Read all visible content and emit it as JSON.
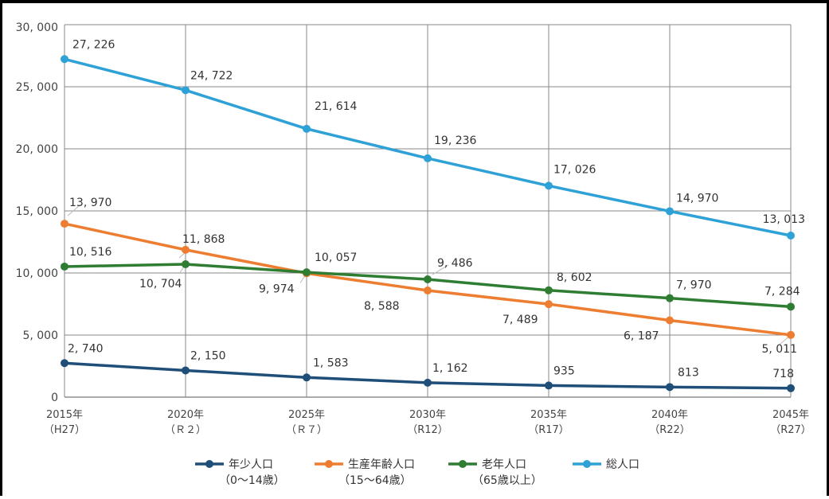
{
  "chart_data": {
    "type": "line",
    "title": "",
    "xlabel": "",
    "ylabel": "",
    "ylim": [
      0,
      30000
    ],
    "yticks": [
      "0",
      "5, 000",
      "10, 000",
      "15, 000",
      "20, 000",
      "25, 000",
      "30, 000"
    ],
    "grid": true,
    "legend_position": "bottom",
    "categories": [
      {
        "year": "2015年",
        "era": "（H27）"
      },
      {
        "year": "2020年",
        "era": "（Ｒ２）"
      },
      {
        "year": "2025年",
        "era": "（Ｒ７）"
      },
      {
        "year": "2030年",
        "era": "（R12）"
      },
      {
        "year": "2035年",
        "era": "（R17）"
      },
      {
        "year": "2040年",
        "era": "（R22）"
      },
      {
        "year": "2045年",
        "era": "（R27）"
      }
    ],
    "series": [
      {
        "name": "年少人口",
        "sub": "（0～14歳）",
        "color": "#1f4e79",
        "values": [
          2740,
          2150,
          1583,
          1162,
          935,
          813,
          718
        ],
        "labels": [
          "2, 740",
          "2, 150",
          "1, 583",
          "1, 162",
          "935",
          "813",
          "718"
        ]
      },
      {
        "name": "生産年齢人口",
        "sub": "（15～64歳）",
        "color": "#ed7d31",
        "values": [
          13970,
          11868,
          9974,
          8588,
          7489,
          6187,
          5011
        ],
        "labels": [
          "13, 970",
          "11, 868",
          "9, 974",
          "8, 588",
          "7, 489",
          "6, 187",
          "5, 011"
        ]
      },
      {
        "name": "老年人口",
        "sub": "（65歳以上）",
        "color": "#2e7d32",
        "values": [
          10516,
          10704,
          10057,
          9486,
          8602,
          7970,
          7284
        ],
        "labels": [
          "10, 516",
          "10, 704",
          "10, 057",
          "9, 486",
          "8, 602",
          "7, 970",
          "7, 284"
        ]
      },
      {
        "name": "総人口",
        "sub": "",
        "color": "#2ea1d6",
        "values": [
          27226,
          24722,
          21614,
          19236,
          17026,
          14970,
          13013
        ],
        "labels": [
          "27, 226",
          "24, 722",
          "21, 614",
          "19, 236",
          "17, 026",
          "14, 970",
          "13, 013"
        ]
      }
    ]
  }
}
